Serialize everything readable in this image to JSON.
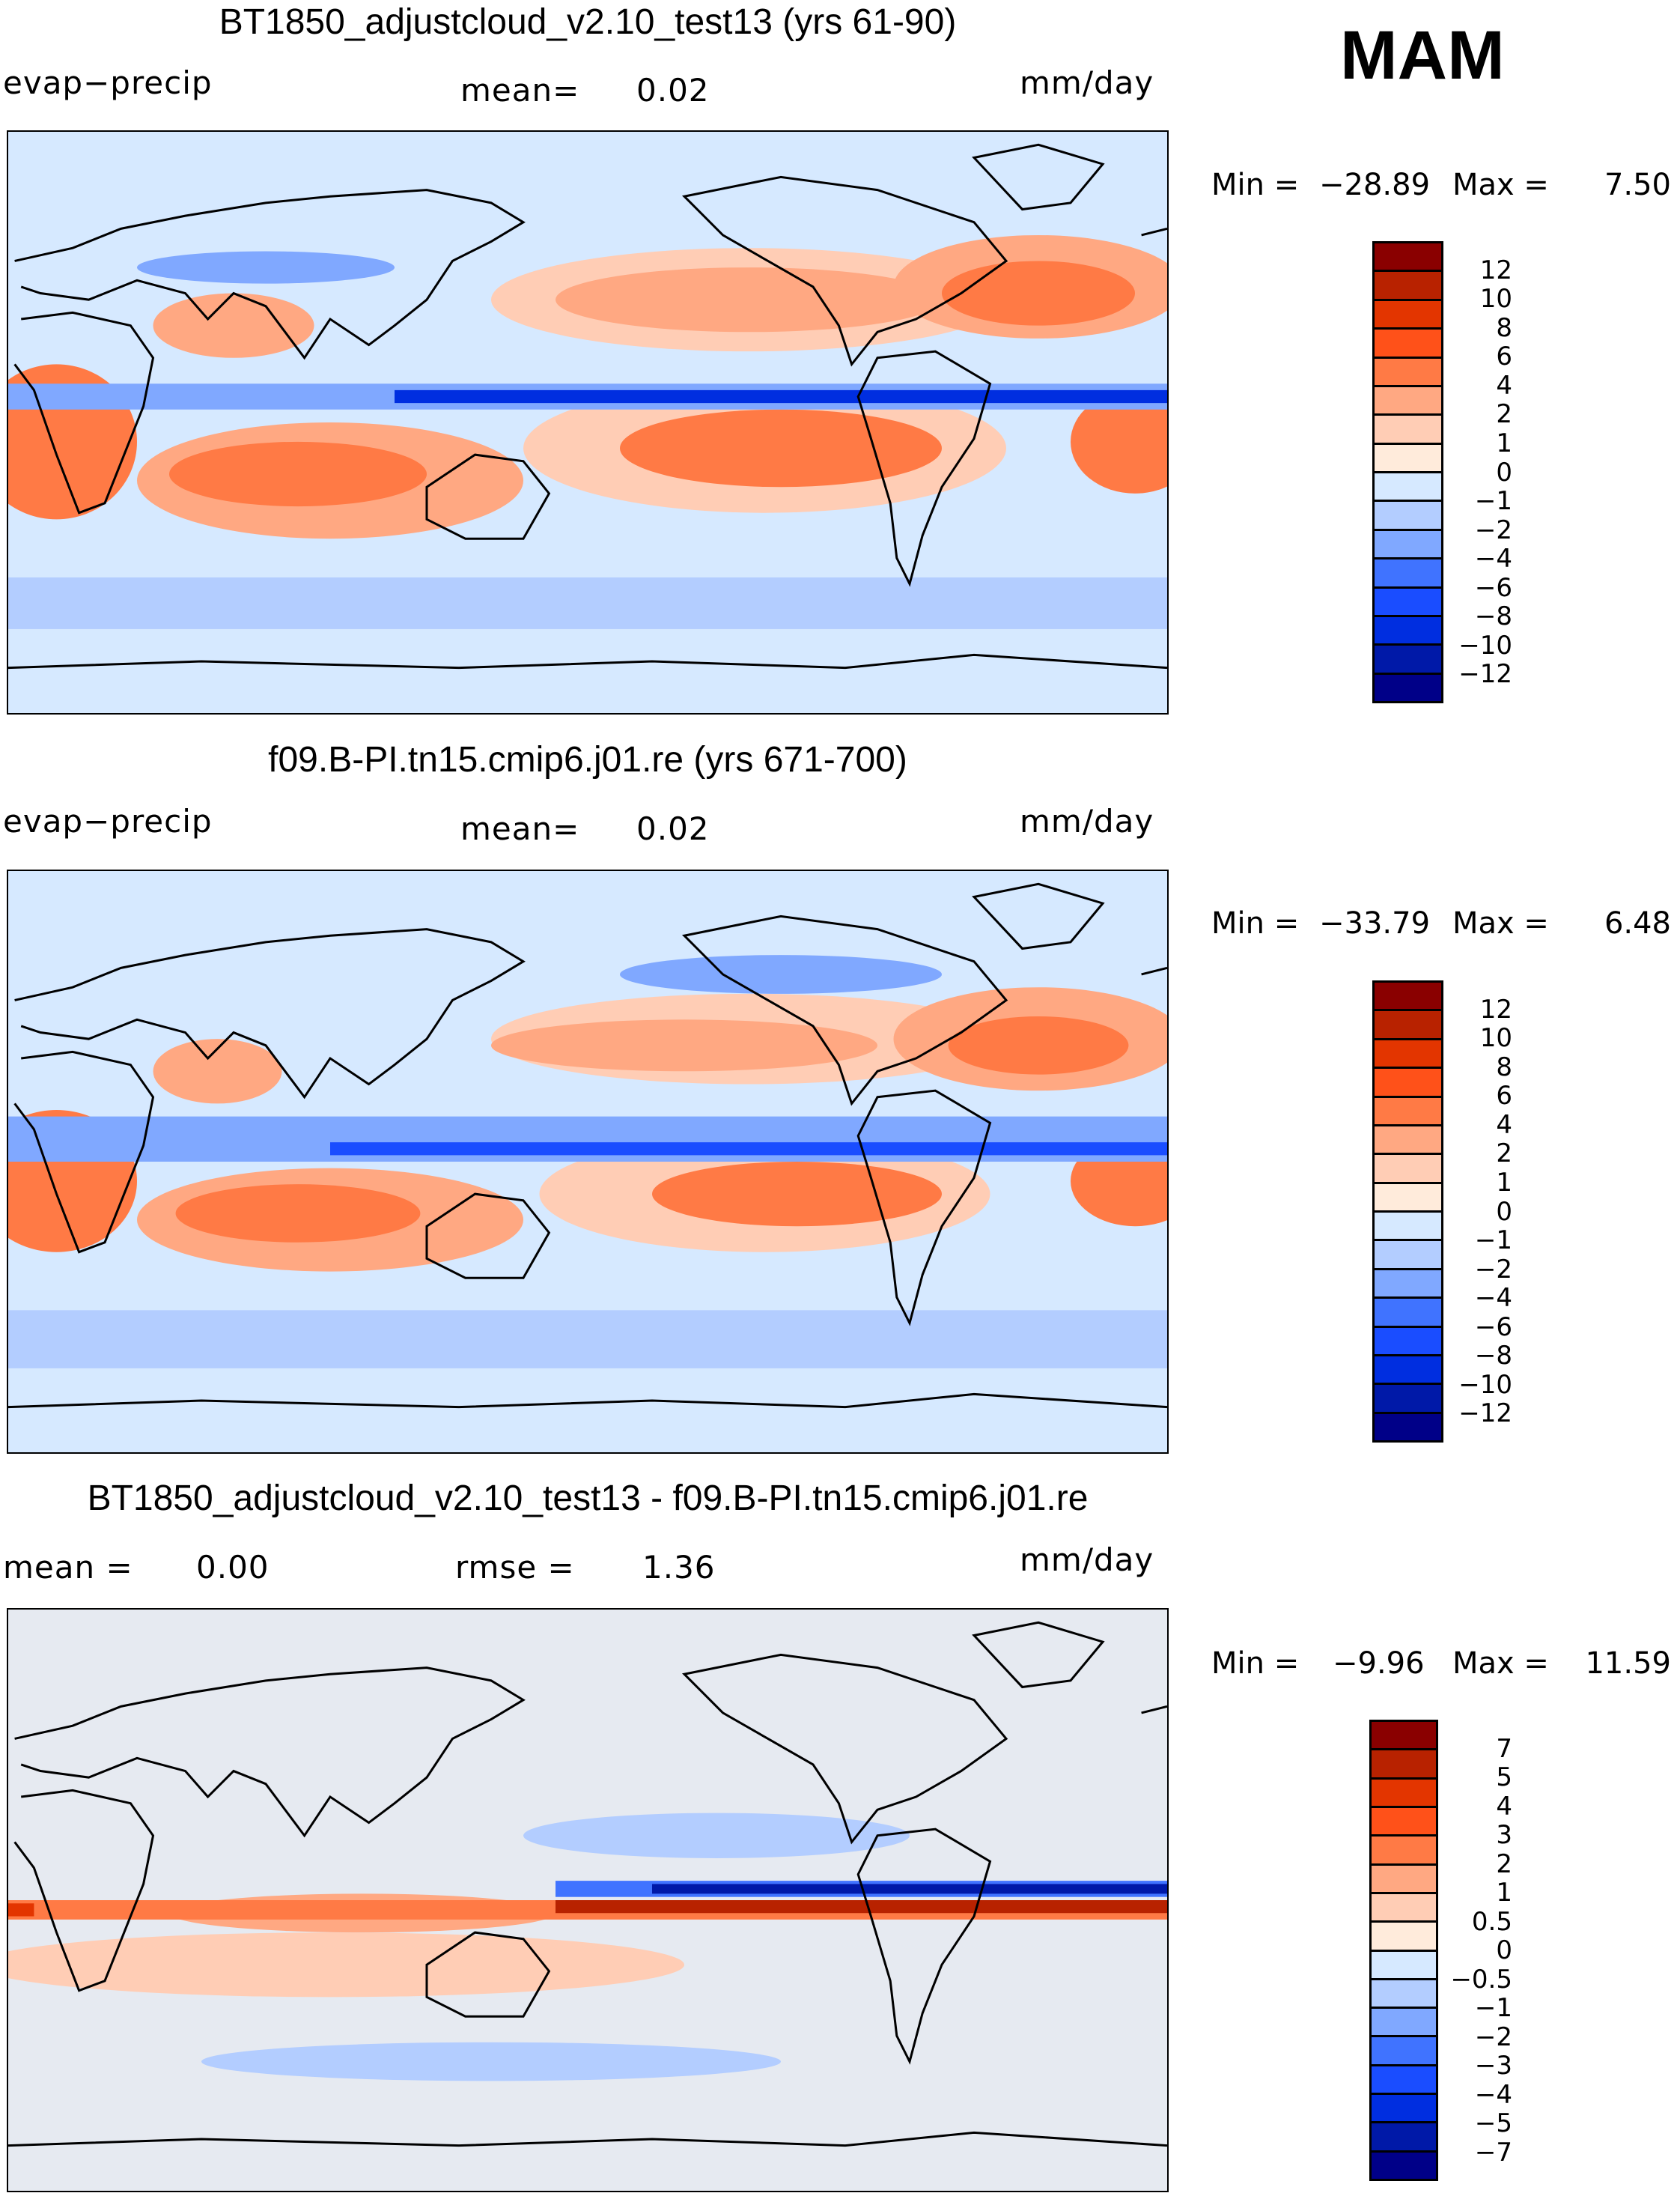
{
  "season": "MAM",
  "colors": {
    "abs_scale": [
      "#8a0000",
      "#b82200",
      "#e33500",
      "#ff5119",
      "#ff7a45",
      "#ffa882",
      "#ffcdb5",
      "#ffebdb",
      "#d6e9ff",
      "#b3cdff",
      "#80a8ff",
      "#4073ff",
      "#1a4dff",
      "#002ee0",
      "#0019a8",
      "#000088"
    ],
    "diff_scale": [
      "#8a0000",
      "#b82200",
      "#e33500",
      "#ff5119",
      "#ff7a45",
      "#ffa882",
      "#ffcdb5",
      "#ffebdb",
      "#d6e9ff",
      "#b3cdff",
      "#80a8ff",
      "#4073ff",
      "#1a4dff",
      "#002ee0",
      "#0019a8",
      "#000088"
    ]
  },
  "panels": [
    {
      "title": "BT1850_adjustcloud_v2.10_test13 (yrs 61-90)",
      "left_label": "evap−precip",
      "middle_label": "mean=",
      "middle_value": "0.02",
      "units": "mm/day",
      "min_label": "Min  =",
      "min_value": "−28.89",
      "max_label": "Max  =",
      "max_value": "7.50",
      "levels": [
        "12",
        "10",
        "8",
        "6",
        "4",
        "2",
        "1",
        "0",
        "−1",
        "−2",
        "−4",
        "−6",
        "−8",
        "−10",
        "−12"
      ]
    },
    {
      "title": "f09.B-PI.tn15.cmip6.j01.re (yrs 671-700)",
      "left_label": "evap−precip",
      "middle_label": "mean=",
      "middle_value": "0.02",
      "units": "mm/day",
      "min_label": "Min  =",
      "min_value": "−33.79",
      "max_label": "Max  =",
      "max_value": "6.48",
      "levels": [
        "12",
        "10",
        "8",
        "6",
        "4",
        "2",
        "1",
        "0",
        "−1",
        "−2",
        "−4",
        "−6",
        "−8",
        "−10",
        "−12"
      ]
    },
    {
      "title": "BT1850_adjustcloud_v2.10_test13 - f09.B-PI.tn15.cmip6.j01.re",
      "left_label": "mean =",
      "left_value": "0.00",
      "middle_label": "rmse =",
      "middle_value": "1.36",
      "units": "mm/day",
      "min_label": "Min  =",
      "min_value": "−9.96",
      "max_label": "Max  =",
      "max_value": "11.59",
      "levels": [
        "7",
        "5",
        "4",
        "3",
        "2",
        "1",
        "0.5",
        "0",
        "−0.5",
        "−1",
        "−2",
        "−3",
        "−4",
        "−5",
        "−7"
      ]
    }
  ]
}
